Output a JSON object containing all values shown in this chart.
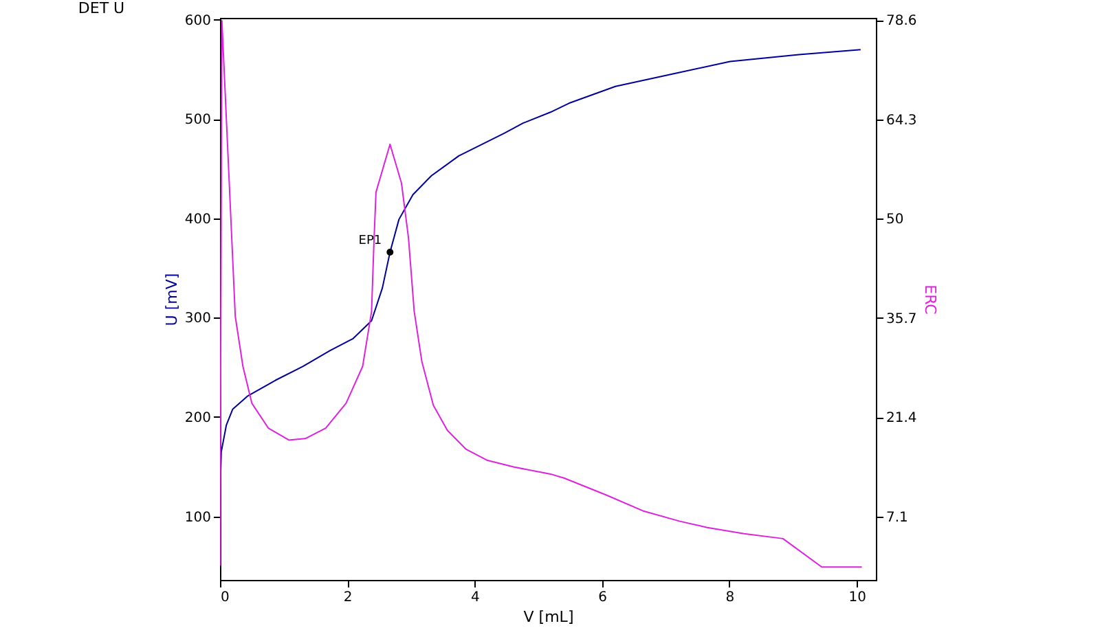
{
  "chart_data": {
    "type": "line",
    "title": "DET U",
    "xlabel": "V [mL]",
    "ylabel": "U [mV]",
    "y2label": "ERC",
    "xlim": [
      0,
      10.3
    ],
    "xticks": [
      0,
      2,
      4,
      6,
      8,
      10
    ],
    "ylim": [
      36,
      602
    ],
    "yticks": [
      100,
      200,
      300,
      400,
      500,
      600
    ],
    "y2lim": [
      -2.05,
      78.9
    ],
    "y2ticks": [
      7.1,
      21.4,
      35.7,
      50,
      64.3,
      78.6
    ],
    "grid": false,
    "line_style": "solid",
    "series": [
      {
        "color": "#000099",
        "x": [
          0,
          0.02,
          0.1,
          0.2,
          0.43,
          0.87,
          1.3,
          1.73,
          2.09,
          2.38,
          2.55,
          2.67,
          2.81,
          3.03,
          3.32,
          3.75,
          4.47,
          4.76,
          5.19,
          5.48,
          6.21,
          7.14,
          8.01,
          9.09,
          10.06
        ],
        "values": [
          120,
          165,
          192,
          208,
          221,
          237,
          251,
          267,
          279,
          297,
          330,
          366,
          399,
          424,
          443,
          463,
          486,
          496,
          507,
          516,
          533,
          546,
          558,
          565,
          570
        ]
      },
      {
        "color": "#dd22dd",
        "axis": "y2",
        "x": [
          0,
          0.03,
          0.24,
          0.36,
          0.5,
          0.76,
          1.08,
          1.34,
          1.66,
          1.98,
          2.24,
          2.38,
          2.42,
          2.45,
          2.67,
          2.85,
          2.96,
          3.05,
          3.17,
          3.35,
          3.57,
          3.86,
          4.19,
          4.62,
          5.19,
          5.41,
          6.06,
          6.64,
          7.22,
          7.65,
          8.23,
          8.84,
          9.45,
          10.08
        ],
        "values": [
          0,
          78.5,
          35.9,
          28.7,
          23.4,
          19.8,
          18.1,
          18.3,
          19.8,
          23.4,
          28.7,
          36.6,
          47.2,
          53.8,
          60.7,
          55.1,
          47.2,
          36.6,
          29.4,
          23.1,
          19.5,
          16.8,
          15.2,
          14.2,
          13.2,
          12.6,
          10.2,
          7.9,
          6.4,
          5.5,
          4.6,
          3.9,
          -0.2,
          -0.2
        ]
      },
      {
        "type": "scatter",
        "marker": "circle",
        "color": "#000000",
        "x": [
          2.67
        ],
        "values": [
          366
        ]
      }
    ],
    "annotations": [
      {
        "text": "EP1",
        "x": 2.67,
        "y": 366
      }
    ]
  }
}
